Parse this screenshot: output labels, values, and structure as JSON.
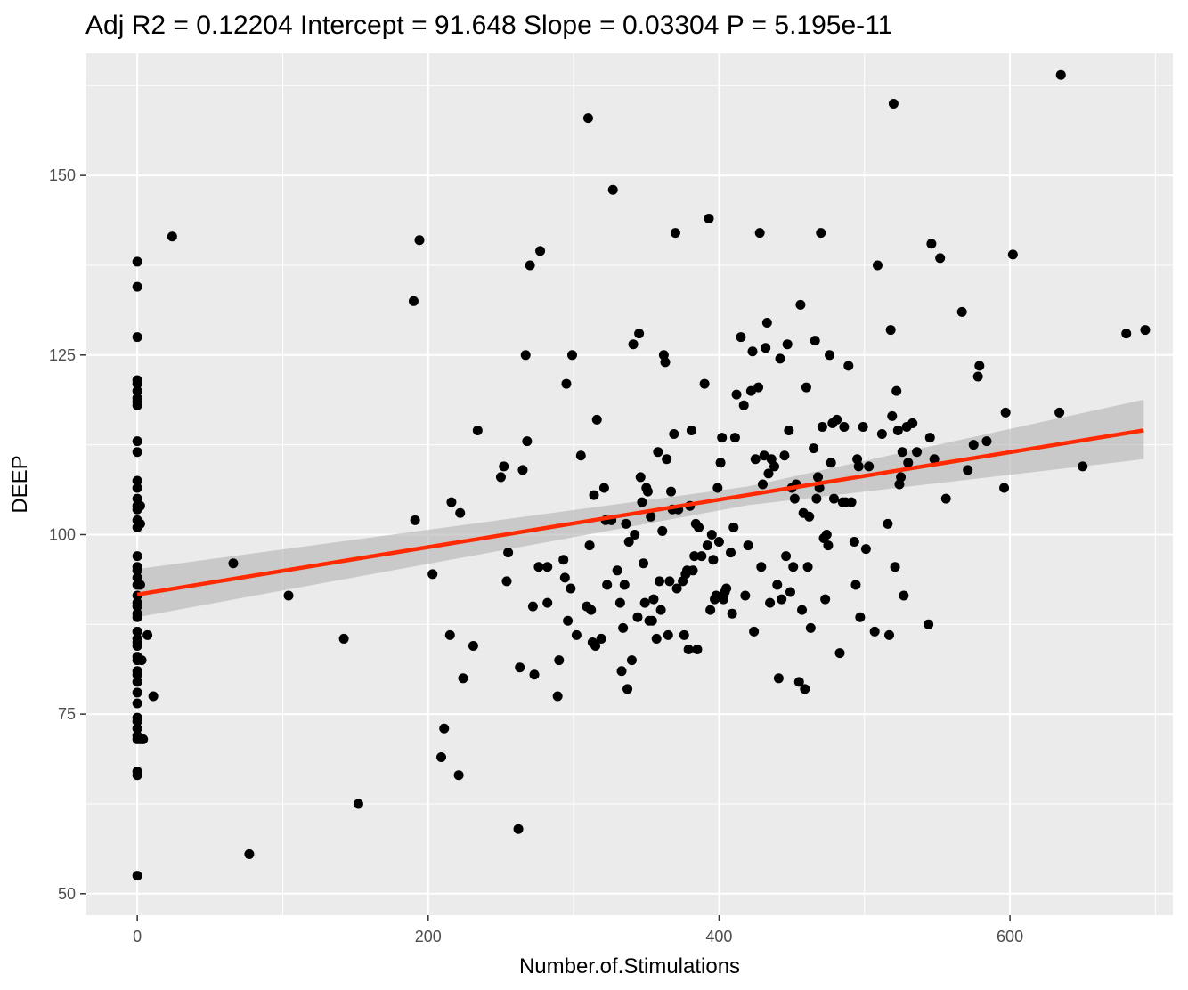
{
  "chart_data": {
    "type": "scatter",
    "title": "Adj R2 =  0.12204 Intercept = 91.648  Slope = 0.03304  P = 5.195e-11",
    "xlabel": "Number.of.Stimulations",
    "ylabel": "DEEP",
    "xlim": [
      -35,
      712
    ],
    "ylim": [
      47,
      167
    ],
    "x_ticks": [
      0,
      200,
      400,
      600
    ],
    "y_ticks": [
      50,
      75,
      100,
      125,
      150
    ],
    "x_tick_labels": [
      "0",
      "200",
      "400",
      "600"
    ],
    "y_tick_labels": [
      "50",
      "75",
      "100",
      "125",
      "150"
    ],
    "grid": true,
    "panel_background": "#ebebeb",
    "grid_color": "#ffffff",
    "point_color": "#000000",
    "regression": {
      "intercept": 91.648,
      "slope": 0.03304,
      "x_range": [
        0,
        692
      ],
      "line_color": "#ff2a00",
      "band_color": "#b3b3b3",
      "band_low": [
        88.5,
        110.5
      ],
      "band_high": [
        95.2,
        118.8
      ],
      "band_mid_x": 420,
      "band_mid_low": 104.1,
      "band_mid_high": 106.7
    },
    "points": [
      [
        0,
        52.5
      ],
      [
        0,
        66.5
      ],
      [
        0,
        67
      ],
      [
        0,
        71.5
      ],
      [
        0,
        72
      ],
      [
        0,
        73
      ],
      [
        0,
        74
      ],
      [
        0,
        74.5
      ],
      [
        0,
        76.5
      ],
      [
        0,
        78
      ],
      [
        0,
        79.5
      ],
      [
        0,
        80.5
      ],
      [
        0,
        81
      ],
      [
        0,
        82.5
      ],
      [
        0,
        83
      ],
      [
        0,
        84.5
      ],
      [
        0,
        85
      ],
      [
        0,
        85.5
      ],
      [
        0,
        86.5
      ],
      [
        0,
        88.5
      ],
      [
        0,
        89
      ],
      [
        0,
        90
      ],
      [
        0,
        90.5
      ],
      [
        0,
        91.5
      ],
      [
        0,
        93
      ],
      [
        0,
        94
      ],
      [
        0,
        95
      ],
      [
        0,
        95.5
      ],
      [
        0,
        97
      ],
      [
        0,
        101
      ],
      [
        0,
        102
      ],
      [
        0,
        103.5
      ],
      [
        0,
        104
      ],
      [
        0,
        105
      ],
      [
        0,
        106.5
      ],
      [
        0,
        107.5
      ],
      [
        0,
        111.5
      ],
      [
        0,
        113
      ],
      [
        0,
        118
      ],
      [
        0,
        118.5
      ],
      [
        0,
        119
      ],
      [
        0,
        120
      ],
      [
        0,
        121
      ],
      [
        0,
        121.5
      ],
      [
        0,
        127.5
      ],
      [
        0,
        134.5
      ],
      [
        0,
        138
      ],
      [
        2,
        71.5
      ],
      [
        2,
        93
      ],
      [
        2,
        101.5
      ],
      [
        2,
        104
      ],
      [
        3,
        82.5
      ],
      [
        4,
        71.5
      ],
      [
        7,
        86
      ],
      [
        11,
        77.5
      ],
      [
        24,
        141.5
      ],
      [
        66,
        96
      ],
      [
        77,
        55.5
      ],
      [
        104,
        91.5
      ],
      [
        142,
        85.5
      ],
      [
        152,
        62.5
      ],
      [
        190,
        132.5
      ],
      [
        191,
        102
      ],
      [
        194,
        141
      ],
      [
        203,
        94.5
      ],
      [
        209,
        69
      ],
      [
        211,
        73
      ],
      [
        215,
        86
      ],
      [
        216,
        104.5
      ],
      [
        221,
        66.5
      ],
      [
        222,
        103
      ],
      [
        224,
        80
      ],
      [
        231,
        84.5
      ],
      [
        234,
        114.5
      ],
      [
        250,
        108
      ],
      [
        252,
        109.5
      ],
      [
        254,
        93.5
      ],
      [
        255,
        97.5
      ],
      [
        262,
        59
      ],
      [
        263,
        81.5
      ],
      [
        265,
        109
      ],
      [
        267,
        125
      ],
      [
        268,
        113
      ],
      [
        270,
        137.5
      ],
      [
        272,
        90
      ],
      [
        273,
        80.5
      ],
      [
        276,
        95.5
      ],
      [
        277,
        139.5
      ],
      [
        282,
        90.5
      ],
      [
        282,
        95.5
      ],
      [
        289,
        77.5
      ],
      [
        290,
        82.5
      ],
      [
        293,
        96.5
      ],
      [
        294,
        94
      ],
      [
        295,
        121
      ],
      [
        296,
        88
      ],
      [
        298,
        92.5
      ],
      [
        299,
        125
      ],
      [
        302,
        86
      ],
      [
        305,
        111
      ],
      [
        309,
        90
      ],
      [
        310,
        158
      ],
      [
        311,
        98.5
      ],
      [
        312,
        89.5
      ],
      [
        313,
        85
      ],
      [
        314,
        105.5
      ],
      [
        315,
        84.5
      ],
      [
        316,
        116
      ],
      [
        319,
        85.5
      ],
      [
        321,
        106.5
      ],
      [
        322,
        102
      ],
      [
        323,
        93
      ],
      [
        326,
        102
      ],
      [
        327,
        148
      ],
      [
        330,
        95
      ],
      [
        332,
        90.5
      ],
      [
        333,
        81
      ],
      [
        334,
        87
      ],
      [
        335,
        93
      ],
      [
        336,
        101.5
      ],
      [
        337,
        78.5
      ],
      [
        338,
        99
      ],
      [
        340,
        82.5
      ],
      [
        341,
        126.5
      ],
      [
        342,
        100
      ],
      [
        344,
        88.5
      ],
      [
        345,
        128
      ],
      [
        346,
        108
      ],
      [
        347,
        104.5
      ],
      [
        348,
        96
      ],
      [
        349,
        90.5
      ],
      [
        350,
        106.5
      ],
      [
        351,
        106
      ],
      [
        352,
        88
      ],
      [
        353,
        102.5
      ],
      [
        354,
        88
      ],
      [
        355,
        91
      ],
      [
        357,
        85.5
      ],
      [
        358,
        111.5
      ],
      [
        359,
        93.5
      ],
      [
        360,
        89.5
      ],
      [
        361,
        100.5
      ],
      [
        362,
        125
      ],
      [
        363,
        124
      ],
      [
        364,
        110.5
      ],
      [
        365,
        86
      ],
      [
        366,
        93.5
      ],
      [
        367,
        106
      ],
      [
        368,
        103.5
      ],
      [
        369,
        114
      ],
      [
        370,
        142
      ],
      [
        371,
        92.5
      ],
      [
        372,
        103.5
      ],
      [
        375,
        93.5
      ],
      [
        376,
        86
      ],
      [
        377,
        94.5
      ],
      [
        378,
        95
      ],
      [
        379,
        84
      ],
      [
        380,
        104
      ],
      [
        381,
        114.5
      ],
      [
        382,
        95
      ],
      [
        383,
        97
      ],
      [
        384,
        101.5
      ],
      [
        385,
        84
      ],
      [
        386,
        101
      ],
      [
        388,
        97
      ],
      [
        390,
        121
      ],
      [
        392,
        98.5
      ],
      [
        393,
        144
      ],
      [
        394,
        89.5
      ],
      [
        395,
        100
      ],
      [
        396,
        96.5
      ],
      [
        397,
        91
      ],
      [
        398,
        91.5
      ],
      [
        399,
        106.5
      ],
      [
        400,
        99
      ],
      [
        401,
        110
      ],
      [
        402,
        113.5
      ],
      [
        403,
        91
      ],
      [
        404,
        92
      ],
      [
        405,
        92.5
      ],
      [
        408,
        97.5
      ],
      [
        409,
        89
      ],
      [
        410,
        101
      ],
      [
        411,
        113.5
      ],
      [
        412,
        119.5
      ],
      [
        415,
        127.5
      ],
      [
        417,
        118
      ],
      [
        418,
        91.5
      ],
      [
        420,
        98.5
      ],
      [
        422,
        120
      ],
      [
        423,
        125.5
      ],
      [
        424,
        86.5
      ],
      [
        425,
        110.5
      ],
      [
        427,
        120.5
      ],
      [
        428,
        142
      ],
      [
        429,
        95.5
      ],
      [
        430,
        107
      ],
      [
        431,
        111
      ],
      [
        432,
        126
      ],
      [
        433,
        129.5
      ],
      [
        434,
        108.5
      ],
      [
        435,
        90.5
      ],
      [
        436,
        110.5
      ],
      [
        438,
        109.5
      ],
      [
        440,
        93
      ],
      [
        441,
        80
      ],
      [
        442,
        124.5
      ],
      [
        443,
        91
      ],
      [
        445,
        111
      ],
      [
        446,
        97
      ],
      [
        447,
        126.5
      ],
      [
        448,
        114.5
      ],
      [
        449,
        92
      ],
      [
        450,
        106.5
      ],
      [
        451,
        95.5
      ],
      [
        452,
        105
      ],
      [
        453,
        107
      ],
      [
        455,
        79.5
      ],
      [
        456,
        132
      ],
      [
        457,
        89.5
      ],
      [
        458,
        103
      ],
      [
        459,
        78.5
      ],
      [
        460,
        120.5
      ],
      [
        461,
        95.5
      ],
      [
        462,
        102.5
      ],
      [
        463,
        87
      ],
      [
        465,
        112
      ],
      [
        466,
        127
      ],
      [
        467,
        105
      ],
      [
        468,
        108
      ],
      [
        469,
        106.5
      ],
      [
        470,
        142
      ],
      [
        471,
        115
      ],
      [
        472,
        99.5
      ],
      [
        473,
        91
      ],
      [
        474,
        100
      ],
      [
        475,
        98.5
      ],
      [
        476,
        125
      ],
      [
        477,
        110
      ],
      [
        478,
        115.5
      ],
      [
        479,
        105
      ],
      [
        481,
        116
      ],
      [
        483,
        83.5
      ],
      [
        485,
        104.5
      ],
      [
        486,
        115
      ],
      [
        487,
        104.5
      ],
      [
        489,
        123.5
      ],
      [
        491,
        104.5
      ],
      [
        493,
        99
      ],
      [
        494,
        93
      ],
      [
        495,
        110.5
      ],
      [
        496,
        109.5
      ],
      [
        497,
        88.5
      ],
      [
        499,
        115
      ],
      [
        501,
        98
      ],
      [
        503,
        109.5
      ],
      [
        507,
        86.5
      ],
      [
        509,
        137.5
      ],
      [
        512,
        114
      ],
      [
        516,
        101.5
      ],
      [
        517,
        86
      ],
      [
        518,
        128.5
      ],
      [
        519,
        116.5
      ],
      [
        520,
        160
      ],
      [
        521,
        95.5
      ],
      [
        522,
        120
      ],
      [
        523,
        114.5
      ],
      [
        524,
        107
      ],
      [
        525,
        108
      ],
      [
        526,
        111.5
      ],
      [
        527,
        91.5
      ],
      [
        529,
        115
      ],
      [
        530,
        110
      ],
      [
        533,
        115.5
      ],
      [
        536,
        111.5
      ],
      [
        544,
        87.5
      ],
      [
        545,
        113.5
      ],
      [
        546,
        140.5
      ],
      [
        548,
        110.5
      ],
      [
        552,
        138.5
      ],
      [
        556,
        105
      ],
      [
        567,
        131
      ],
      [
        571,
        109
      ],
      [
        575,
        112.5
      ],
      [
        578,
        122
      ],
      [
        579,
        123.5
      ],
      [
        584,
        113
      ],
      [
        596,
        106.5
      ],
      [
        597,
        117
      ],
      [
        602,
        139
      ],
      [
        634,
        117
      ],
      [
        635,
        164
      ],
      [
        650,
        109.5
      ],
      [
        680,
        128
      ],
      [
        693,
        128.5
      ]
    ]
  }
}
